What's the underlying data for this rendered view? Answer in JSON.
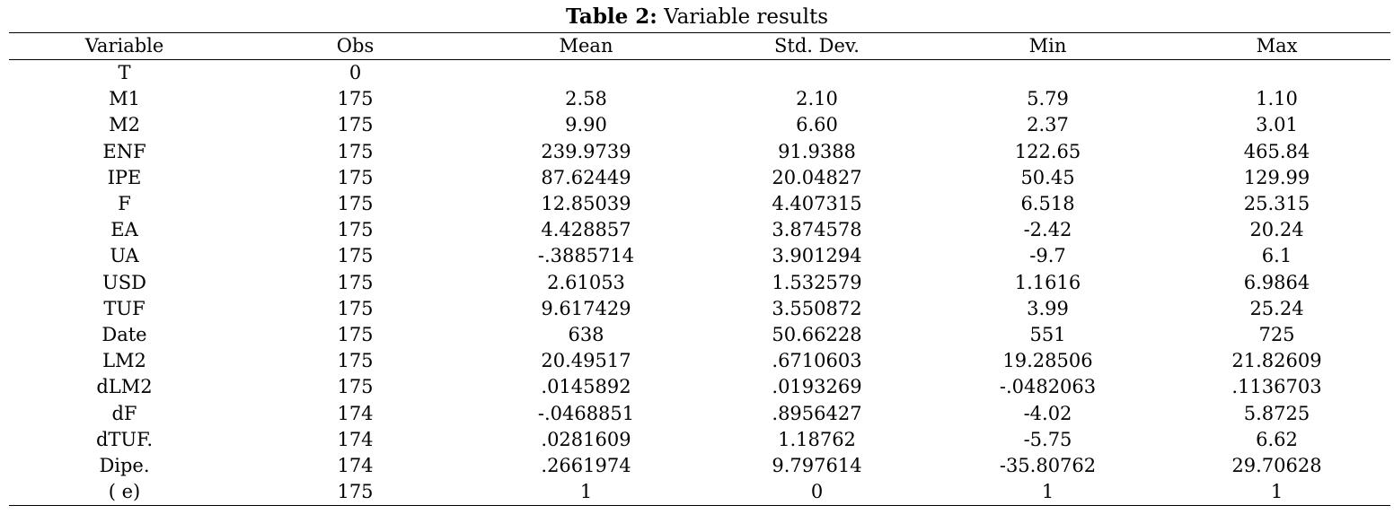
{
  "caption": {
    "label": "Table 2:",
    "title": " Variable results"
  },
  "table": {
    "columns": [
      "Variable",
      "Obs",
      "Mean",
      "Std. Dev.",
      "Min",
      "Max"
    ],
    "rows": [
      [
        "T",
        "0",
        "",
        "",
        "",
        ""
      ],
      [
        "M1",
        "175",
        "2.58",
        "2.10",
        "5.79",
        "1.10"
      ],
      [
        "M2",
        "175",
        "9.90",
        "6.60",
        "2.37",
        "3.01"
      ],
      [
        "ENF",
        "175",
        "239.9739",
        "91.9388",
        "122.65",
        "465.84"
      ],
      [
        "IPE",
        "175",
        "87.62449",
        "20.04827",
        "50.45",
        "129.99"
      ],
      [
        "F",
        "175",
        "12.85039",
        "4.407315",
        "6.518",
        "25.315"
      ],
      [
        "EA",
        "175",
        "4.428857",
        "3.874578",
        "-2.42",
        "20.24"
      ],
      [
        "UA",
        "175",
        "-.3885714",
        "3.901294",
        "-9.7",
        "6.1"
      ],
      [
        "USD",
        "175",
        "2.61053",
        "1.532579",
        "1.1616",
        "6.9864"
      ],
      [
        "TUF",
        "175",
        "9.617429",
        "3.550872",
        "3.99",
        "25.24"
      ],
      [
        "Date",
        "175",
        "638",
        "50.66228",
        "551",
        "725"
      ],
      [
        "LM2",
        "175",
        "20.49517",
        ".6710603",
        "19.28506",
        "21.82609"
      ],
      [
        "dLM2",
        "175",
        ".0145892",
        ".0193269",
        "-.0482063",
        ".1136703"
      ],
      [
        "dF",
        "174",
        "-.0468851",
        ".8956427",
        "-4.02",
        "5.8725"
      ],
      [
        "dTUF.",
        "174",
        ".0281609",
        "1.18762",
        "-5.75",
        "6.62"
      ],
      [
        "Dipe.",
        "174",
        ".2661974",
        "9.797614",
        "-35.80762",
        "29.70628"
      ],
      [
        "( e)",
        "175",
        "1",
        "0",
        "1",
        "1"
      ]
    ]
  }
}
